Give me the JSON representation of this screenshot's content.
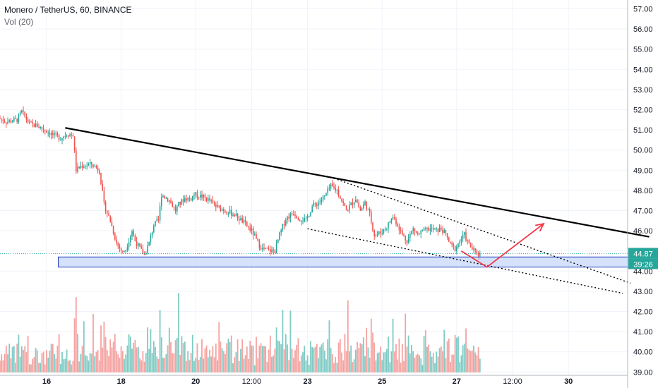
{
  "header": {
    "symbol_title": "Monero / TetherUS, 60, BINANCE",
    "volume_label": "Vol (20)"
  },
  "price_tags": {
    "last_price": "44.87",
    "countdown": "39:26",
    "color": "#26a69a"
  },
  "colors": {
    "up": "#26a69a",
    "down": "#ef5350",
    "up_vol": "#80cbc4",
    "down_vol": "#f4a3a1",
    "trendline": "#000000",
    "arrow": "#f23645",
    "zone_fill": "#c5d6fb",
    "zone_stroke": "#1e3db8"
  },
  "chart_data": {
    "type": "candlestick",
    "title": "Monero / TetherUS, 60, BINANCE",
    "y_ticks": [
      "57.00",
      "56.00",
      "55.00",
      "54.00",
      "53.00",
      "52.00",
      "51.00",
      "50.00",
      "49.00",
      "48.00",
      "47.00",
      "46.00",
      "45.00",
      "44.00",
      "43.00",
      "42.00",
      "41.00",
      "40.00",
      "39.00"
    ],
    "ylim": [
      38.8,
      57.4
    ],
    "x_ticks": [
      {
        "label": "16",
        "t": 0,
        "major": true
      },
      {
        "label": "18",
        "t": 48,
        "major": true
      },
      {
        "label": "20",
        "t": 96,
        "major": true
      },
      {
        "label": "12:00",
        "t": 132,
        "major": false
      },
      {
        "label": "23",
        "t": 168,
        "major": true
      },
      {
        "label": "25",
        "t": 216,
        "major": true
      },
      {
        "label": "27",
        "t": 264,
        "major": true
      },
      {
        "label": "12:00",
        "t": 300,
        "major": false
      },
      {
        "label": "30",
        "t": 336,
        "major": true
      }
    ],
    "xlim": [
      -30,
      388
    ],
    "price_path": [
      [
        -30,
        51.6
      ],
      [
        -25,
        51.4
      ],
      [
        -18,
        51.5
      ],
      [
        -15,
        51.9
      ],
      [
        -10,
        51.3
      ],
      [
        -5,
        51.2
      ],
      [
        0,
        51.0
      ],
      [
        6,
        50.7
      ],
      [
        10,
        50.6
      ],
      [
        14,
        50.8
      ],
      [
        18,
        50.75
      ],
      [
        20,
        49.0
      ],
      [
        23,
        49.2
      ],
      [
        30,
        49.3
      ],
      [
        35,
        49.0
      ],
      [
        38,
        47.3
      ],
      [
        42,
        46.5
      ],
      [
        46,
        45.4
      ],
      [
        50,
        44.9
      ],
      [
        52,
        45.1
      ],
      [
        56,
        46.0
      ],
      [
        58,
        45.5
      ],
      [
        62,
        45.0
      ],
      [
        64,
        44.8
      ],
      [
        67,
        45.4
      ],
      [
        70,
        46.3
      ],
      [
        73,
        46.5
      ],
      [
        75,
        47.8
      ],
      [
        80,
        47.5
      ],
      [
        84,
        47.0
      ],
      [
        86,
        47.3
      ],
      [
        90,
        47.6
      ],
      [
        94,
        47.6
      ],
      [
        96,
        47.8
      ],
      [
        101,
        47.7
      ],
      [
        106,
        47.5
      ],
      [
        110,
        47.2
      ],
      [
        116,
        47.0
      ],
      [
        122,
        46.8
      ],
      [
        128,
        46.4
      ],
      [
        133,
        46.0
      ],
      [
        137,
        45.4
      ],
      [
        140,
        45.1
      ],
      [
        145,
        45.0
      ],
      [
        148,
        45.0
      ],
      [
        151,
        45.8
      ],
      [
        155,
        46.6
      ],
      [
        160,
        46.9
      ],
      [
        164,
        46.6
      ],
      [
        168,
        46.5
      ],
      [
        172,
        47.2
      ],
      [
        176,
        47.4
      ],
      [
        180,
        47.7
      ],
      [
        184,
        48.2
      ],
      [
        188,
        48.0
      ],
      [
        191,
        47.5
      ],
      [
        194,
        47.0
      ],
      [
        197,
        47.3
      ],
      [
        200,
        47.6
      ],
      [
        203,
        47.0
      ],
      [
        206,
        47.4
      ],
      [
        209,
        46.8
      ],
      [
        212,
        45.8
      ],
      [
        216,
        45.9
      ],
      [
        220,
        46.2
      ],
      [
        224,
        46.7
      ],
      [
        227,
        46.3
      ],
      [
        230,
        45.8
      ],
      [
        233,
        45.5
      ],
      [
        237,
        46.1
      ],
      [
        240,
        45.8
      ],
      [
        244,
        46.0
      ],
      [
        248,
        46.1
      ],
      [
        252,
        46.0
      ],
      [
        255,
        46.1
      ],
      [
        258,
        45.8
      ],
      [
        261,
        45.3
      ],
      [
        264,
        45.1
      ],
      [
        267,
        45.5
      ],
      [
        270,
        45.8
      ],
      [
        273,
        45.3
      ],
      [
        276,
        45.0
      ],
      [
        279,
        44.85
      ]
    ]
  },
  "drawings": {
    "trendline": [
      [
        12.0,
        51.1
      ],
      [
        388,
        45.7
      ]
    ],
    "channel_upper": [
      [
        185,
        48.6
      ],
      [
        376,
        43.4
      ]
    ],
    "channel_lower": [
      [
        168,
        46.1
      ],
      [
        371,
        42.9
      ]
    ],
    "arrow": [
      [
        267,
        45.0
      ],
      [
        283.5,
        44.2
      ],
      [
        320,
        46.35
      ]
    ],
    "zone": {
      "t_start": 7.5,
      "t_end": 388,
      "y_top": 44.7,
      "y_bottom": 44.2
    },
    "last_price_value": 44.87
  }
}
